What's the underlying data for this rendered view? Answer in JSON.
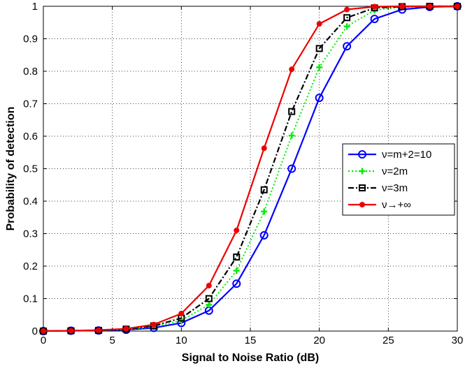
{
  "chart_data": {
    "type": "line",
    "xlabel": "Signal to Noise Ratio (dB)",
    "ylabel": "Probability of detection",
    "xlim": [
      0,
      30
    ],
    "ylim": [
      0,
      1
    ],
    "xticks": [
      0,
      5,
      10,
      15,
      20,
      25,
      30
    ],
    "yticks": [
      0,
      0.1,
      0.2,
      0.3,
      0.4,
      0.5,
      0.6,
      0.7,
      0.8,
      0.9,
      1
    ],
    "grid": true,
    "legend_position": "center-right",
    "x": [
      0,
      2,
      4,
      6,
      8,
      10,
      12,
      14,
      16,
      18,
      20,
      22,
      24,
      26,
      28,
      30
    ],
    "series": [
      {
        "name": "ν=m+2=10",
        "color": "#0000ff",
        "line_style": "solid",
        "marker": "circle",
        "values": [
          0.0,
          0.001,
          0.002,
          0.004,
          0.01,
          0.025,
          0.063,
          0.146,
          0.295,
          0.5,
          0.718,
          0.877,
          0.961,
          0.99,
          0.998,
          1.0
        ]
      },
      {
        "name": "ν=2m",
        "color": "#00ee00",
        "line_style": "dotted",
        "marker": "plus",
        "values": [
          0.0,
          0.001,
          0.002,
          0.005,
          0.013,
          0.033,
          0.081,
          0.186,
          0.368,
          0.602,
          0.812,
          0.938,
          0.988,
          0.998,
          1.0,
          1.0
        ]
      },
      {
        "name": "ν=3m",
        "color": "#000000",
        "line_style": "dashdot",
        "marker": "square",
        "values": [
          0.0,
          0.001,
          0.002,
          0.006,
          0.016,
          0.04,
          0.1,
          0.228,
          0.435,
          0.676,
          0.87,
          0.965,
          0.995,
          0.999,
          1.0,
          1.0
        ]
      },
      {
        "name": "ν→+∞",
        "color": "#ee0000",
        "line_style": "solid",
        "marker": "dot",
        "values": [
          0.0,
          0.001,
          0.003,
          0.007,
          0.02,
          0.054,
          0.14,
          0.31,
          0.563,
          0.806,
          0.946,
          0.99,
          0.999,
          1.0,
          1.0,
          1.0
        ]
      }
    ]
  }
}
